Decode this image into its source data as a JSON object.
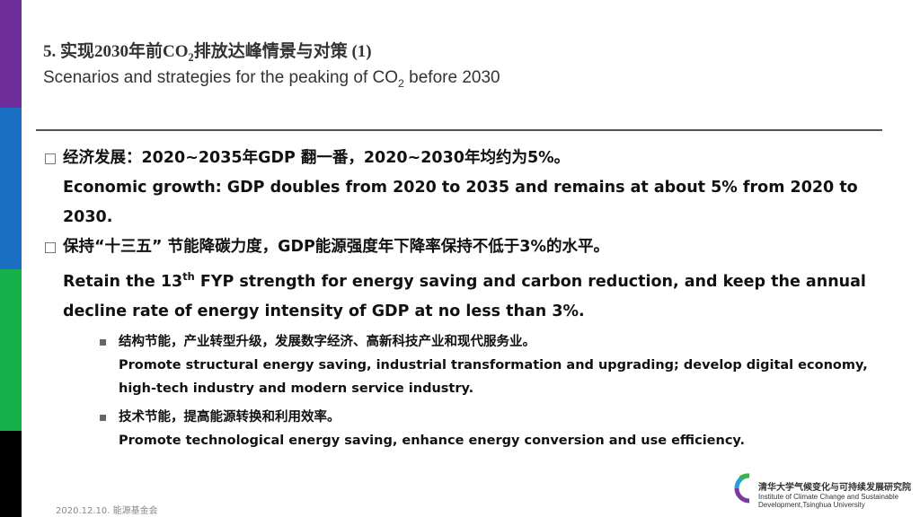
{
  "accent_colors": {
    "purple": "#6f2d9b",
    "blue": "#1a6fc4",
    "green": "#16b04a",
    "black": "#000000"
  },
  "header": {
    "title_cn_prefix": "5. 实现2030年前CO",
    "title_cn_sub": "2",
    "title_cn_suffix": "排放达峰情景与对策 (1)",
    "title_en_prefix": "Scenarios and strategies for the peaking of CO",
    "title_en_sub": "2",
    "title_en_suffix": " before 2030"
  },
  "bullets": [
    {
      "cn": "经济发展：2020~2035年GDP 翻一番，2020~2030年均约为5%。",
      "en": "Economic growth: GDP doubles from 2020 to 2035 and remains at about 5% from 2020 to 2030."
    },
    {
      "cn": "保持“十三五” 节能降碳力度，GDP能源强度年下降率保持不低于3%的水平。",
      "en_prefix": "Retain the 13",
      "en_sup": "th",
      "en_suffix": " FYP strength for energy saving and carbon reduction, and keep the annual decline rate of energy intensity of GDP at no less than 3%."
    }
  ],
  "sub_bullets": [
    {
      "cn": "结构节能，产业转型升级，发展数字经济、高新科技产业和现代服务业。",
      "en": "Promote structural energy saving, industrial transformation and upgrading; develop digital economy, high-tech industry and modern service industry."
    },
    {
      "cn": "技术节能，提高能源转换和利用效率。",
      "en": "Promote technological energy saving, enhance energy conversion and use efficiency."
    }
  ],
  "footer": {
    "date_org": "2020.12.10.  能源基金会"
  },
  "logo": {
    "cn": "清华大学气候变化与可持续发展研究院",
    "en": "Institute of Climate Change and Sustainable Development,Tsinghua University"
  }
}
